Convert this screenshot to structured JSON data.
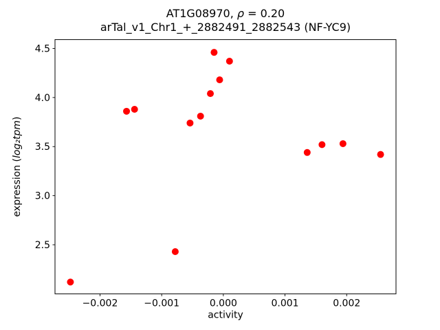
{
  "chart_data": {
    "type": "scatter",
    "title": {
      "line1_prefix": "AT1G08970, ",
      "line1_rho": "ρ",
      "line1_rest": " = 0.20",
      "line2": "arTal_v1_Chr1_+_2882491_2882543 (NF-YC9)"
    },
    "xlabel": "activity",
    "ylabel": {
      "pre": "expression (",
      "math": "log₂tpm",
      "post": ")"
    },
    "marker": {
      "color": "#ff0000",
      "radius_px": 5
    },
    "axes_color": "#000000",
    "background": "#ffffff",
    "xlim": [
      -0.00273,
      0.0028
    ],
    "ylim": [
      2.0,
      4.59
    ],
    "xticks": [
      -0.002,
      -0.001,
      0.0,
      0.001,
      0.002
    ],
    "xtick_labels": [
      "−0.002",
      "−0.001",
      "0.000",
      "0.001",
      "0.002"
    ],
    "yticks": [
      2.5,
      3.0,
      3.5,
      4.0,
      4.5
    ],
    "ytick_labels": [
      "2.5",
      "3.0",
      "3.5",
      "4.0",
      "4.5"
    ],
    "points": [
      {
        "x": -0.00248,
        "y": 2.12
      },
      {
        "x": -0.00157,
        "y": 3.86
      },
      {
        "x": -0.00144,
        "y": 3.88
      },
      {
        "x": -0.00078,
        "y": 2.43
      },
      {
        "x": -0.00054,
        "y": 3.74
      },
      {
        "x": -0.00037,
        "y": 3.81
      },
      {
        "x": -0.00021,
        "y": 4.04
      },
      {
        "x": -0.00015,
        "y": 4.46
      },
      {
        "x": -6e-05,
        "y": 4.18
      },
      {
        "x": 0.0001,
        "y": 4.37
      },
      {
        "x": 0.00136,
        "y": 3.44
      },
      {
        "x": 0.0016,
        "y": 3.52
      },
      {
        "x": 0.00194,
        "y": 3.53
      },
      {
        "x": 0.00255,
        "y": 3.42
      }
    ]
  }
}
